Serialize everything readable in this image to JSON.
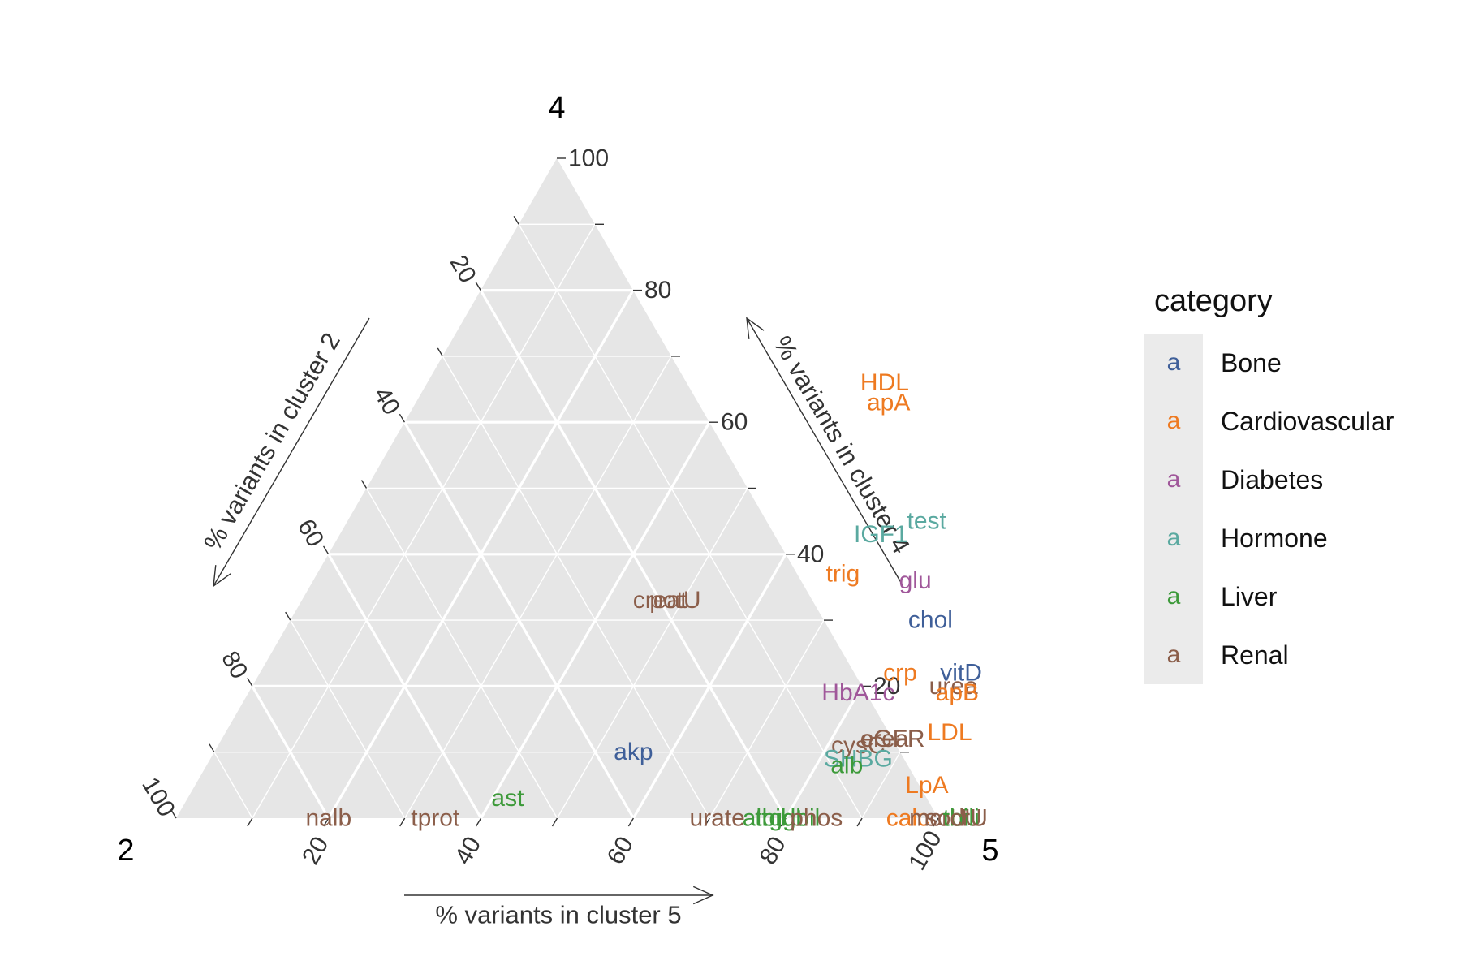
{
  "chart_data": {
    "type": "scatter",
    "subtype": "ternary",
    "vertex_labels": {
      "top": "4",
      "left": "2",
      "right": "5"
    },
    "axis_labels": {
      "left": "% variants in cluster 2",
      "right": "% variants in cluster 4",
      "bottom": "% variants in cluster 5"
    },
    "ticks": [
      "20",
      "40",
      "60",
      "80",
      "100"
    ],
    "grid": true,
    "legend": {
      "title": "category",
      "position": "right",
      "key_glyph": "a",
      "items": [
        {
          "name": "Bone",
          "color": "#3f5f99"
        },
        {
          "name": "Cardiovascular",
          "color": "#ee7a21"
        },
        {
          "name": "Diabetes",
          "color": "#a0579a"
        },
        {
          "name": "Hormone",
          "color": "#5aa9a0"
        },
        {
          "name": "Liver",
          "color": "#3d9a3a"
        },
        {
          "name": "Renal",
          "color": "#8b5e4a"
        }
      ]
    },
    "points": [
      {
        "label": "HDL",
        "category": "Cardiovascular",
        "c4": 66,
        "c5": 60
      },
      {
        "label": "apA",
        "category": "Cardiovascular",
        "c4": 63,
        "c5": 62
      },
      {
        "label": "test",
        "category": "Hormone",
        "c4": 45,
        "c5": 76
      },
      {
        "label": "IGF1",
        "category": "Hormone",
        "c4": 43,
        "c5": 71
      },
      {
        "label": "trig",
        "category": "Cardiovascular",
        "c4": 37,
        "c5": 69
      },
      {
        "label": "glu",
        "category": "Diabetes",
        "c4": 36,
        "c5": 79
      },
      {
        "label": "creat",
        "category": "Renal",
        "c4": 33,
        "c5": 47
      },
      {
        "label": "potU",
        "category": "Renal",
        "c4": 33,
        "c5": 49
      },
      {
        "label": "chol",
        "category": "Bone",
        "c4": 30,
        "c5": 84
      },
      {
        "label": "crp",
        "category": "Cardiovascular",
        "c4": 22,
        "c5": 84
      },
      {
        "label": "vitD",
        "category": "Bone",
        "c4": 22,
        "c5": 92
      },
      {
        "label": "urea",
        "category": "Renal",
        "c4": 20,
        "c5": 92
      },
      {
        "label": "apB",
        "category": "Cardiovascular",
        "c4": 19,
        "c5": 93
      },
      {
        "label": "HbA1c",
        "category": "Diabetes",
        "c4": 19,
        "c5": 80
      },
      {
        "label": "LDL",
        "category": "Cardiovascular",
        "c4": 13,
        "c5": 95
      },
      {
        "label": "cysC",
        "category": "Renal",
        "c4": 11,
        "c5": 84
      },
      {
        "label": "eGFR",
        "category": "Renal",
        "c4": 12,
        "c5": 88
      },
      {
        "label": "crea",
        "category": "Renal",
        "c4": 12,
        "c5": 87
      },
      {
        "label": "SHBG",
        "category": "Hormone",
        "c4": 9,
        "c5": 85
      },
      {
        "label": "alb",
        "category": "Liver",
        "c4": 8,
        "c5": 84
      },
      {
        "label": "akp",
        "category": "Bone",
        "c4": 10,
        "c5": 55
      },
      {
        "label": "LpA",
        "category": "Cardiovascular",
        "c4": 5,
        "c5": 96
      },
      {
        "label": "ast",
        "category": "Liver",
        "c4": 3,
        "c5": 42
      },
      {
        "label": "nalb",
        "category": "Renal",
        "c4": 0,
        "c5": 20
      },
      {
        "label": "tprot",
        "category": "Renal",
        "c4": 0,
        "c5": 34
      },
      {
        "label": "urate",
        "category": "Renal",
        "c4": 0,
        "c5": 71
      },
      {
        "label": "alt",
        "category": "Liver",
        "c4": 0,
        "c5": 76
      },
      {
        "label": "tbil",
        "category": "Liver",
        "c4": 0,
        "c5": 78
      },
      {
        "label": "dbil",
        "category": "Liver",
        "c4": 0,
        "c5": 82
      },
      {
        "label": "ggt",
        "category": "Liver",
        "c4": 0,
        "c5": 80
      },
      {
        "label": "phos",
        "category": "Renal",
        "c4": 0,
        "c5": 84
      },
      {
        "label": "calc",
        "category": "Cardiovascular",
        "c4": 0,
        "c5": 96
      },
      {
        "label": "mcrU",
        "category": "Renal",
        "c4": 0,
        "c5": 100
      },
      {
        "label": "sodU",
        "category": "Renal",
        "c4": 0,
        "c5": 102
      },
      {
        "label": "tbili",
        "category": "Liver",
        "c4": 0,
        "c5": 103
      },
      {
        "label": "crU",
        "category": "Renal",
        "c4": 0,
        "c5": 104
      }
    ]
  }
}
